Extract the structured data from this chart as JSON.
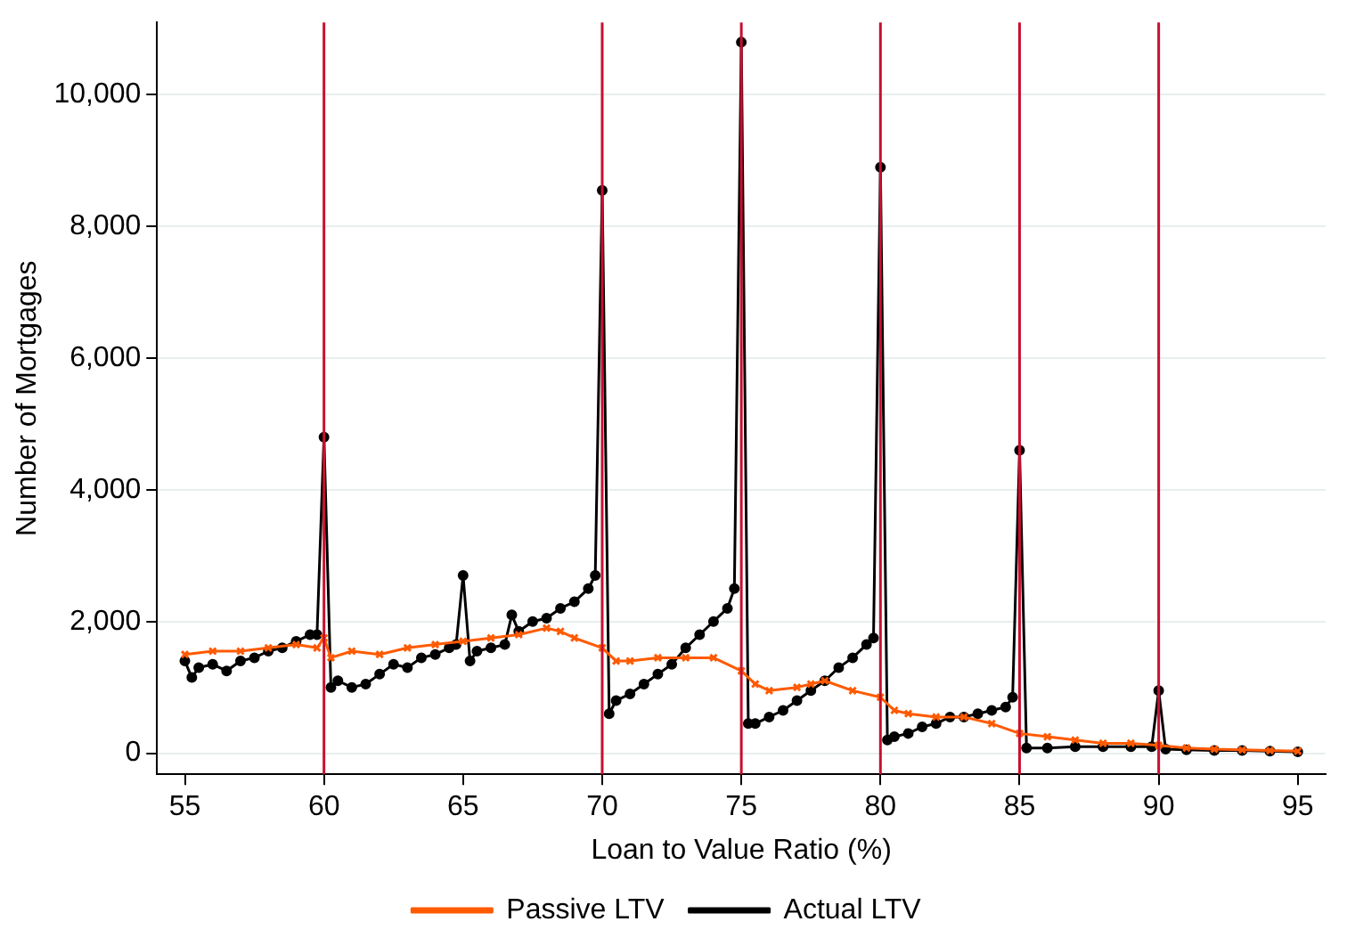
{
  "chart_data": {
    "type": "line",
    "xlabel": "Loan to Value Ratio (%)",
    "ylabel": "Number of Mortgages",
    "xlim": [
      54,
      96
    ],
    "xticks": [
      55,
      60,
      65,
      70,
      75,
      80,
      85,
      90,
      95
    ],
    "ylim": [
      -320,
      11100
    ],
    "yticks": [
      {
        "value": 0,
        "label": "0"
      },
      {
        "value": 2000,
        "label": "2,000"
      },
      {
        "value": 4000,
        "label": "4,000"
      },
      {
        "value": 6000,
        "label": "6,000"
      },
      {
        "value": 8000,
        "label": "8,000"
      },
      {
        "value": 10000,
        "label": "10,000"
      }
    ],
    "grid": "y",
    "legend": "bottom",
    "line_style": "solid",
    "ref_lines": [
      {
        "axis": "x",
        "value": 60,
        "color": "#c8102e"
      },
      {
        "axis": "x",
        "value": 70,
        "color": "#c8102e"
      },
      {
        "axis": "x",
        "value": 75,
        "color": "#c8102e"
      },
      {
        "axis": "x",
        "value": 80,
        "color": "#c8102e"
      },
      {
        "axis": "x",
        "value": 85,
        "color": "#c8102e"
      },
      {
        "axis": "x",
        "value": 90,
        "color": "#c8102e"
      }
    ],
    "series": [
      {
        "name": "Actual LTV",
        "color": "#000000",
        "marker": "circle",
        "x": [
          55,
          55.25,
          55.5,
          56,
          56.5,
          57,
          57.5,
          58,
          58.5,
          59,
          59.5,
          59.75,
          60,
          60.25,
          60.5,
          61,
          61.5,
          62,
          62.5,
          63,
          63.5,
          64,
          64.5,
          64.75,
          65,
          65.25,
          65.5,
          66,
          66.5,
          66.75,
          67,
          67.5,
          68,
          68.5,
          69,
          69.5,
          69.75,
          70,
          70.25,
          70.5,
          71,
          71.5,
          72,
          72.5,
          73,
          73.5,
          74,
          74.5,
          74.75,
          75,
          75.25,
          75.5,
          76,
          76.5,
          77,
          77.5,
          78,
          78.5,
          79,
          79.5,
          79.75,
          80,
          80.25,
          80.5,
          81,
          81.5,
          82,
          82.5,
          83,
          83.5,
          84,
          84.5,
          84.75,
          85,
          85.25,
          86,
          87,
          88,
          89,
          89.75,
          90,
          90.25,
          91,
          92,
          93,
          94,
          95
        ],
        "values": [
          1400,
          1150,
          1300,
          1350,
          1250,
          1400,
          1450,
          1550,
          1600,
          1700,
          1800,
          1800,
          4800,
          1000,
          1100,
          1000,
          1050,
          1200,
          1350,
          1300,
          1450,
          1500,
          1600,
          1650,
          2700,
          1400,
          1550,
          1600,
          1650,
          2100,
          1850,
          2000,
          2050,
          2200,
          2300,
          2500,
          2700,
          8550,
          600,
          800,
          900,
          1050,
          1200,
          1350,
          1600,
          1800,
          2000,
          2200,
          2500,
          10800,
          450,
          450,
          550,
          650,
          800,
          950,
          1100,
          1300,
          1450,
          1650,
          1750,
          8900,
          200,
          250,
          300,
          400,
          450,
          550,
          550,
          600,
          650,
          700,
          850,
          4600,
          80,
          80,
          100,
          100,
          100,
          100,
          950,
          60,
          50,
          40,
          40,
          30,
          20
        ]
      },
      {
        "name": "Passive LTV",
        "color": "#ff5a00",
        "marker": "cross",
        "x": [
          55,
          56,
          57,
          58,
          59,
          59.75,
          60,
          60.25,
          61,
          62,
          63,
          64,
          65,
          66,
          67,
          68,
          68.5,
          69,
          70,
          70.5,
          71,
          72,
          73,
          74,
          75,
          75.5,
          76,
          77,
          77.5,
          78,
          79,
          80,
          80.5,
          81,
          82,
          83,
          84,
          85,
          86,
          87,
          88,
          89,
          90,
          91,
          92,
          93,
          94,
          95
        ],
        "values": [
          1500,
          1550,
          1550,
          1600,
          1650,
          1600,
          1750,
          1450,
          1550,
          1500,
          1600,
          1650,
          1700,
          1750,
          1800,
          1900,
          1850,
          1750,
          1600,
          1400,
          1400,
          1450,
          1450,
          1450,
          1250,
          1050,
          950,
          1000,
          1050,
          1100,
          950,
          850,
          650,
          600,
          550,
          550,
          450,
          300,
          250,
          200,
          150,
          150,
          120,
          80,
          60,
          50,
          40,
          30
        ]
      }
    ]
  }
}
